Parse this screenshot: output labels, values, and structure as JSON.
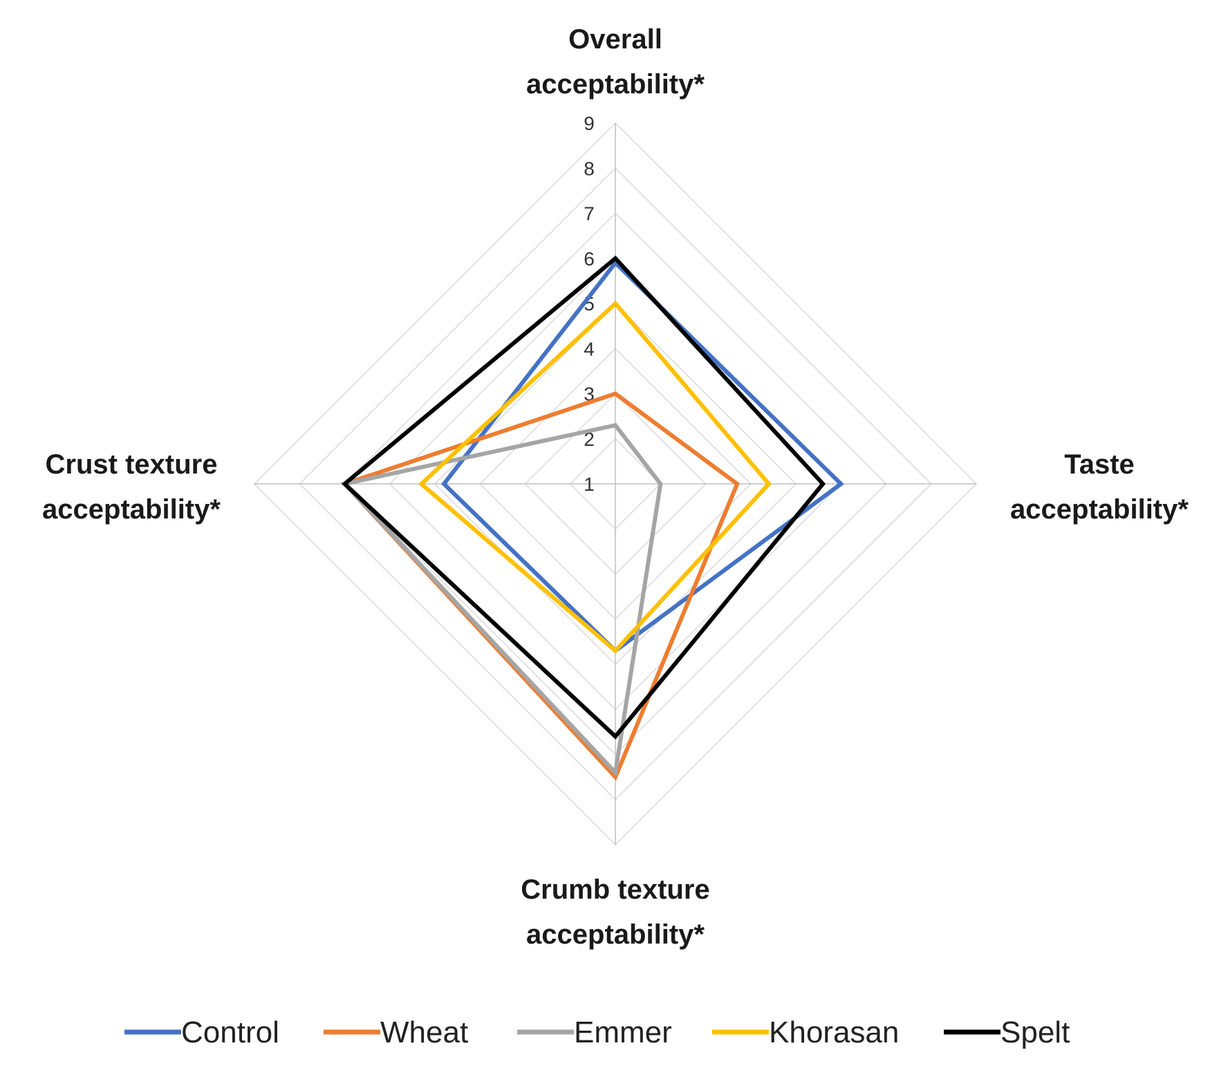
{
  "chart_data": {
    "type": "radar",
    "title": "",
    "axes": [
      [
        "Overall",
        "acceptability*"
      ],
      [
        "Taste",
        "acceptability*"
      ],
      [
        "Crumb texture",
        "acceptability*"
      ],
      [
        "Crust texture",
        "acceptability*"
      ]
    ],
    "rmin": 1,
    "rmax": 9,
    "ticks": [
      "1",
      "2",
      "3",
      "4",
      "5",
      "6",
      "7",
      "8",
      "9"
    ],
    "series": [
      {
        "name": "Control",
        "color": "#4472C4",
        "values": [
          5.9,
          6.0,
          4.7,
          4.8
        ]
      },
      {
        "name": "Wheat",
        "color": "#ED7D31",
        "values": [
          3.0,
          3.7,
          7.5,
          7.0
        ]
      },
      {
        "name": "Emmer",
        "color": "#A5A5A5",
        "values": [
          2.3,
          2.0,
          7.4,
          7.0
        ]
      },
      {
        "name": "Khorasan",
        "color": "#FFC000",
        "values": [
          5.0,
          4.4,
          4.7,
          5.3
        ]
      },
      {
        "name": "Spelt",
        "color": "#000000",
        "values": [
          6.0,
          5.6,
          6.6,
          7.0
        ]
      }
    ],
    "legend_position": "bottom"
  }
}
